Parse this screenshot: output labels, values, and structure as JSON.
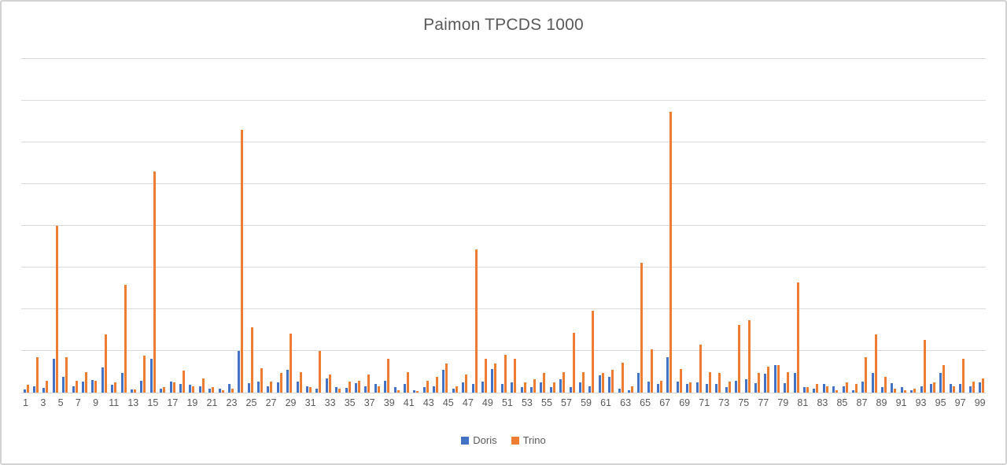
{
  "chart_data": {
    "type": "bar",
    "title": "Paimon TPCDS 1000",
    "xlabel": "",
    "ylabel": "",
    "ylim": [
      0,
      400
    ],
    "gridline_interval": 50,
    "y_axis_tick_labels_visible": false,
    "grid": true,
    "legend_position": "bottom",
    "x_tick_label_step": "odd numbers only (1,3,5,...,99)",
    "categories": [
      1,
      2,
      3,
      4,
      5,
      6,
      7,
      8,
      9,
      10,
      11,
      12,
      13,
      14,
      15,
      16,
      17,
      18,
      19,
      20,
      21,
      22,
      23,
      24,
      25,
      26,
      27,
      28,
      29,
      30,
      31,
      32,
      33,
      34,
      35,
      36,
      37,
      38,
      39,
      40,
      41,
      42,
      43,
      44,
      45,
      46,
      47,
      48,
      49,
      50,
      51,
      52,
      53,
      54,
      55,
      56,
      57,
      58,
      59,
      60,
      61,
      62,
      63,
      64,
      65,
      66,
      67,
      68,
      69,
      70,
      71,
      72,
      73,
      74,
      75,
      76,
      77,
      78,
      79,
      80,
      81,
      82,
      83,
      84,
      85,
      86,
      87,
      88,
      89,
      90,
      91,
      92,
      93,
      94,
      95,
      96,
      97,
      98,
      99
    ],
    "series": [
      {
        "name": "Doris",
        "color": "#4472C4",
        "values": [
          4,
          8,
          6,
          41,
          19,
          8,
          13,
          15,
          30,
          9,
          24,
          4,
          14,
          41,
          5,
          13,
          10,
          9,
          8,
          5,
          5,
          10,
          50,
          11,
          13,
          8,
          12,
          27,
          13,
          8,
          5,
          17,
          7,
          6,
          11,
          8,
          10,
          14,
          7,
          10,
          3,
          7,
          8,
          27,
          5,
          12,
          10,
          13,
          28,
          10,
          12,
          7,
          7,
          12,
          7,
          16,
          7,
          12,
          8,
          21,
          19,
          5,
          3,
          24,
          13,
          10,
          42,
          13,
          10,
          12,
          10,
          10,
          7,
          14,
          16,
          11,
          23,
          33,
          11,
          24,
          7,
          5,
          10,
          8,
          8,
          3,
          13,
          24,
          7,
          11,
          7,
          3,
          8,
          10,
          24,
          10,
          10,
          8,
          12
        ]
      },
      {
        "name": "Trino",
        "color": "#ED7D31",
        "values": [
          9,
          42,
          14,
          200,
          42,
          14,
          25,
          14,
          70,
          12,
          129,
          4,
          44,
          265,
          7,
          12,
          26,
          8,
          17,
          7,
          3,
          5,
          315,
          78,
          29,
          13,
          24,
          71,
          25,
          7,
          50,
          22,
          5,
          13,
          14,
          22,
          8,
          41,
          3,
          25,
          2,
          14,
          19,
          35,
          8,
          22,
          172,
          41,
          35,
          45,
          41,
          12,
          16,
          24,
          12,
          25,
          72,
          25,
          98,
          24,
          27,
          36,
          8,
          156,
          52,
          14,
          337,
          28,
          12,
          58,
          25,
          24,
          13,
          81,
          87,
          24,
          31,
          33,
          25,
          132,
          7,
          10,
          8,
          3,
          12,
          10,
          42,
          70,
          19,
          5,
          3,
          5,
          63,
          12,
          33,
          8,
          41,
          13,
          17
        ]
      }
    ]
  },
  "colors": {
    "doris": "#4472C4",
    "trino": "#ED7D31",
    "gridline": "#D9D9D9",
    "text": "#595959",
    "frame_border": "#D3D3D3"
  },
  "legend": {
    "doris_label": "Doris",
    "trino_label": "Trino"
  }
}
